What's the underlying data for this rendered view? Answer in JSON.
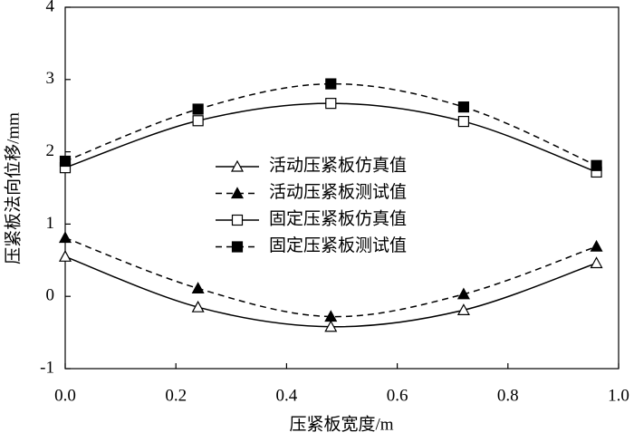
{
  "chart_data": {
    "type": "line",
    "x_label": "压紧板宽度/m",
    "y_label": "压紧板法向位移/mm",
    "x": [
      0,
      0.24,
      0.48,
      0.72,
      0.96
    ],
    "series": [
      {
        "name": "活动压紧板仿真值",
        "color": "#000000",
        "marker": "triangle-open",
        "dashed": false,
        "values": [
          0.55,
          -0.15,
          -0.42,
          -0.19,
          0.46
        ]
      },
      {
        "name": "活动压紧板测试值",
        "color": "#000000",
        "marker": "triangle-filled",
        "dashed": true,
        "values": [
          0.81,
          0.11,
          -0.28,
          0.03,
          0.69
        ]
      },
      {
        "name": "固定压紧板仿真值",
        "color": "#000000",
        "marker": "square-open",
        "dashed": false,
        "values": [
          1.78,
          2.43,
          2.67,
          2.42,
          1.72
        ]
      },
      {
        "name": "固定压紧板测试值",
        "color": "#000000",
        "marker": "square-filled",
        "dashed": true,
        "values": [
          1.87,
          2.59,
          2.94,
          2.62,
          1.81
        ]
      }
    ],
    "xlim": [
      0,
      1.0
    ],
    "xticks": [
      {
        "value": 0,
        "label": "0.0"
      },
      0.2,
      0.4,
      0.6,
      0.8,
      {
        "value": 1.0,
        "label": "1.0"
      }
    ],
    "ylim": [
      -1,
      4
    ],
    "yticks": [
      -1,
      0,
      1,
      2,
      3,
      4
    ],
    "legend": "center",
    "grid": false
  }
}
